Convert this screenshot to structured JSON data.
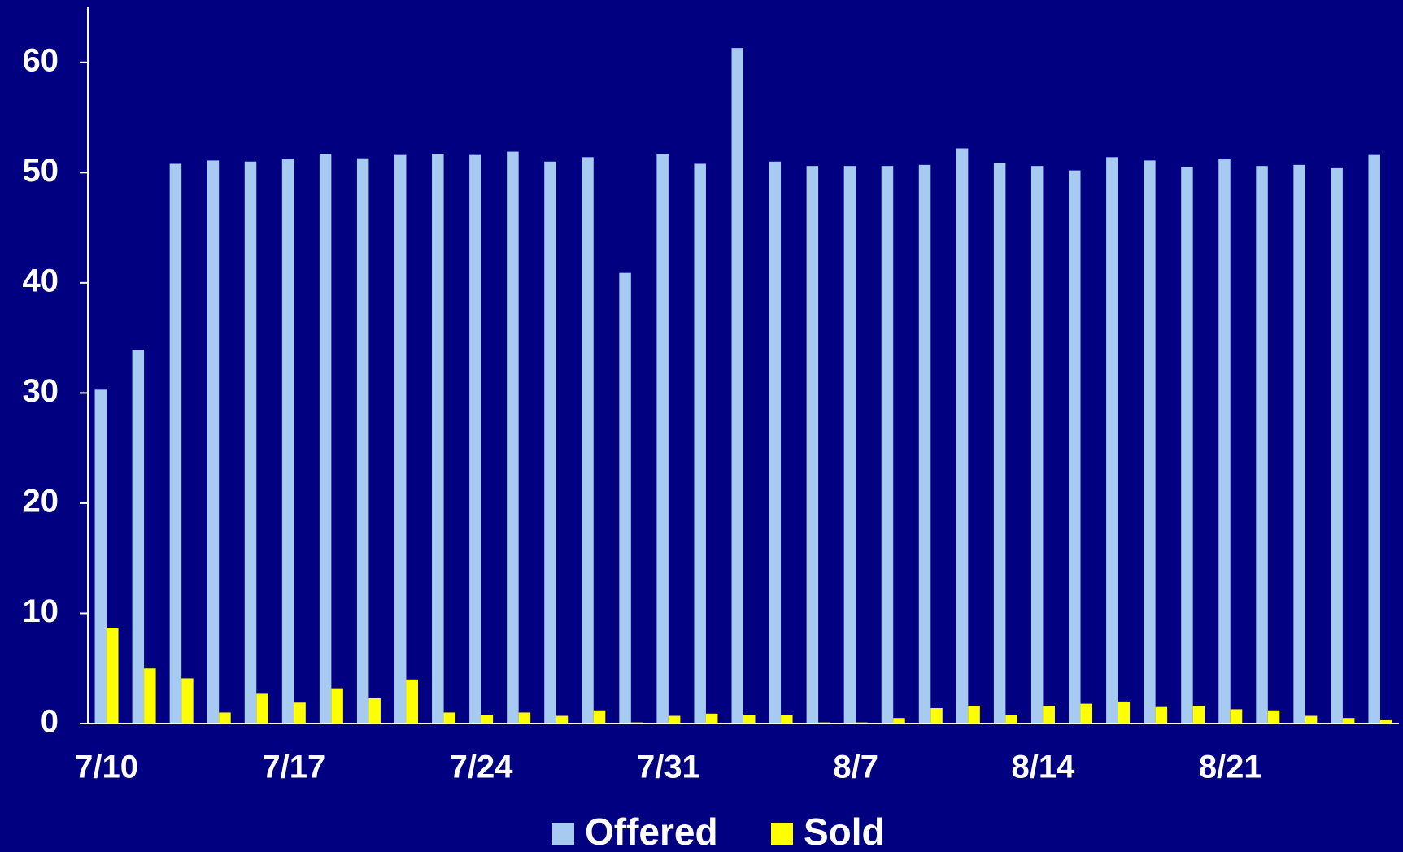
{
  "chart_data": {
    "type": "bar",
    "categories": [
      "7/10",
      null,
      null,
      null,
      null,
      "7/17",
      null,
      null,
      null,
      null,
      "7/24",
      null,
      null,
      null,
      null,
      "7/31",
      null,
      null,
      null,
      null,
      "8/7",
      null,
      null,
      null,
      null,
      "8/14",
      null,
      null,
      null,
      null,
      "8/21",
      null,
      null,
      null,
      null
    ],
    "series": [
      {
        "name": "Offered",
        "color": "#a6caf0",
        "values": [
          30.3,
          33.9,
          50.8,
          51.1,
          51.0,
          51.2,
          51.7,
          51.3,
          51.6,
          51.7,
          51.6,
          51.9,
          51.0,
          51.4,
          40.9,
          51.7,
          50.8,
          61.3,
          51.0,
          50.6,
          50.6,
          50.6,
          50.7,
          52.2,
          50.9,
          50.6,
          50.2,
          51.4,
          51.1,
          50.5,
          51.2,
          50.6,
          50.7,
          50.4,
          51.6
        ]
      },
      {
        "name": "Sold",
        "color": "#ffff00",
        "values": [
          8.7,
          5.0,
          4.1,
          1.0,
          2.7,
          1.9,
          3.2,
          2.3,
          4.0,
          1.0,
          0.8,
          1.0,
          0.7,
          1.2,
          0.1,
          0.7,
          0.9,
          0.8,
          0.8,
          0.1,
          0.1,
          0.5,
          1.4,
          1.6,
          0.8,
          1.6,
          1.8,
          2.0,
          1.5,
          1.6,
          1.3,
          1.2,
          0.7,
          0.5,
          0.3
        ]
      }
    ],
    "ylim": [
      0,
      65
    ],
    "yticks": [
      0,
      10,
      20,
      30,
      40,
      50,
      60
    ],
    "grid": false,
    "legend": "bottom"
  }
}
